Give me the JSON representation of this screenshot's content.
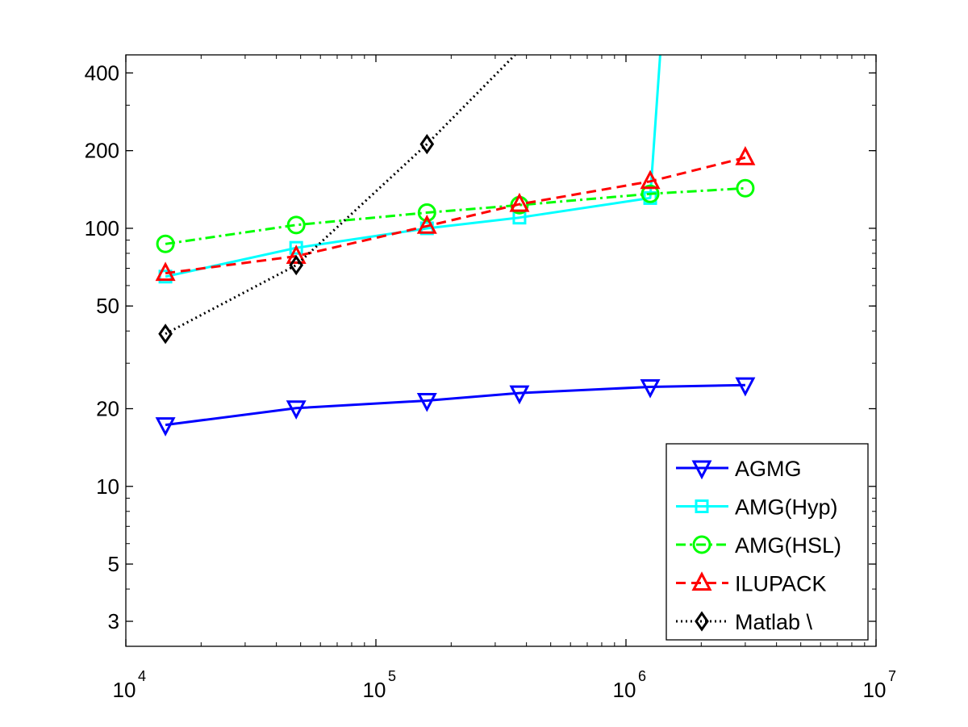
{
  "chart_data": {
    "type": "line",
    "x_scale": "log",
    "y_scale": "log",
    "xlim": [
      10000,
      10000000
    ],
    "ylim": [
      2.4,
      470
    ],
    "x_ticks": [
      {
        "value": 10000,
        "base": "10",
        "exp": "4"
      },
      {
        "value": 100000,
        "base": "10",
        "exp": "5"
      },
      {
        "value": 1000000,
        "base": "10",
        "exp": "6"
      },
      {
        "value": 10000000,
        "base": "10",
        "exp": "7"
      }
    ],
    "y_ticks": [
      3,
      5,
      10,
      20,
      50,
      100,
      200,
      400
    ],
    "grid": false,
    "legend_position": "bottom-right",
    "series": [
      {
        "name": "AGMG",
        "color": "#0000ff",
        "dash": "solid",
        "marker": "triangle-down",
        "x": [
          14400,
          48000,
          160000,
          375000,
          1250000,
          3000000
        ],
        "y": [
          17.3,
          20.1,
          21.5,
          23.0,
          24.3,
          24.7
        ]
      },
      {
        "name": "AMG(Hyp)",
        "color": "#00ffff",
        "dash": "solid",
        "marker": "square",
        "x": [
          14400,
          48000,
          160000,
          375000,
          1250000,
          1370000
        ],
        "y": [
          65,
          84,
          100,
          110,
          131,
          470
        ],
        "marker_count": 5
      },
      {
        "name": "AMG(HSL)",
        "color": "#00ff00",
        "dash": "dash-dot",
        "marker": "circle",
        "x": [
          14400,
          48000,
          160000,
          375000,
          1250000,
          3000000
        ],
        "y": [
          87,
          103,
          115,
          123,
          136,
          143
        ]
      },
      {
        "name": "ILUPACK",
        "color": "#ff0000",
        "dash": "dashed",
        "marker": "triangle-up",
        "x": [
          14400,
          48000,
          160000,
          375000,
          1250000,
          3000000
        ],
        "y": [
          67,
          78,
          102,
          124,
          152,
          188
        ]
      },
      {
        "name": "Matlab \\",
        "color": "#000000",
        "dash": "dotted",
        "marker": "diamond",
        "x": [
          14400,
          48000,
          160000,
          360000
        ],
        "y": [
          39,
          72,
          212,
          470
        ],
        "marker_count": 3
      }
    ]
  }
}
